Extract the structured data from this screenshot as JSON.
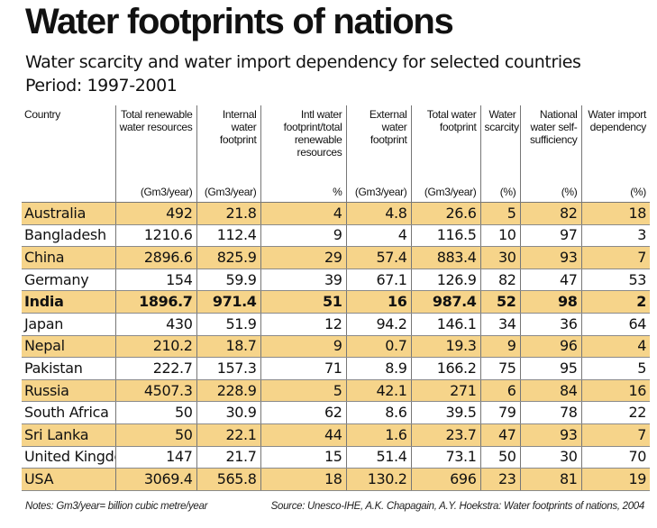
{
  "title": "Water footprints of nations",
  "subtitle_line1": "Water scarcity and water import dependency for selected countries",
  "subtitle_line2": "Period: 1997-2001",
  "columns": [
    {
      "header": "Country",
      "unit": ""
    },
    {
      "header": "Total renewable water resources",
      "unit": "(Gm3/year)"
    },
    {
      "header": "Internal water footprint",
      "unit": "(Gm3/year)"
    },
    {
      "header": "Intl water footprint/total renewable resources",
      "unit": "%"
    },
    {
      "header": "External water footprint",
      "unit": "(Gm3/year)"
    },
    {
      "header": "Total water footprint",
      "unit": "(Gm3/year)"
    },
    {
      "header": "Water scarcity",
      "unit": "(%)"
    },
    {
      "header": "National water self-sufficiency",
      "unit": "(%)"
    },
    {
      "header": "Water import dependency",
      "unit": "(%)"
    }
  ],
  "rows": [
    [
      "Australia",
      "492",
      "21.8",
      "4",
      "4.8",
      "26.6",
      "5",
      "82",
      "18"
    ],
    [
      "Bangladesh",
      "1210.6",
      "112.4",
      "9",
      "4",
      "116.5",
      "10",
      "97",
      "3"
    ],
    [
      "China",
      "2896.6",
      "825.9",
      "29",
      "57.4",
      "883.4",
      "30",
      "93",
      "7"
    ],
    [
      "Germany",
      "154",
      "59.9",
      "39",
      "67.1",
      "126.9",
      "82",
      "47",
      "53"
    ],
    [
      "India",
      "1896.7",
      "971.4",
      "51",
      "16",
      "987.4",
      "52",
      "98",
      "2"
    ],
    [
      "Japan",
      "430",
      "51.9",
      "12",
      "94.2",
      "146.1",
      "34",
      "36",
      "64"
    ],
    [
      "Nepal",
      "210.2",
      "18.7",
      "9",
      "0.7",
      "19.3",
      "9",
      "96",
      "4"
    ],
    [
      "Pakistan",
      "222.7",
      "157.3",
      "71",
      "8.9",
      "166.2",
      "75",
      "95",
      "5"
    ],
    [
      "Russia",
      "4507.3",
      "228.9",
      "5",
      "42.1",
      "271",
      "6",
      "84",
      "16"
    ],
    [
      "South Africa",
      "50",
      "30.9",
      "62",
      "8.6",
      "39.5",
      "79",
      "78",
      "22"
    ],
    [
      "Sri Lanka",
      "50",
      "22.1",
      "44",
      "1.6",
      "23.7",
      "47",
      "93",
      "7"
    ],
    [
      "United Kingdom",
      "147",
      "21.7",
      "15",
      "51.4",
      "73.1",
      "50",
      "30",
      "70"
    ],
    [
      "USA",
      "3069.4",
      "565.8",
      "18",
      "130.2",
      "696",
      "23",
      "81",
      "19"
    ]
  ],
  "highlight_country": "India",
  "notes": "Notes: Gm3/year= billion cubic metre/year",
  "source": "Source: Unesco-IHE, A.K. Chapagain, A.Y. Hoekstra: Water footprints of nations, 2004",
  "colors": {
    "row_shade": "#f6d48a",
    "row_plain": "#ffffff",
    "text": "#111111"
  }
}
